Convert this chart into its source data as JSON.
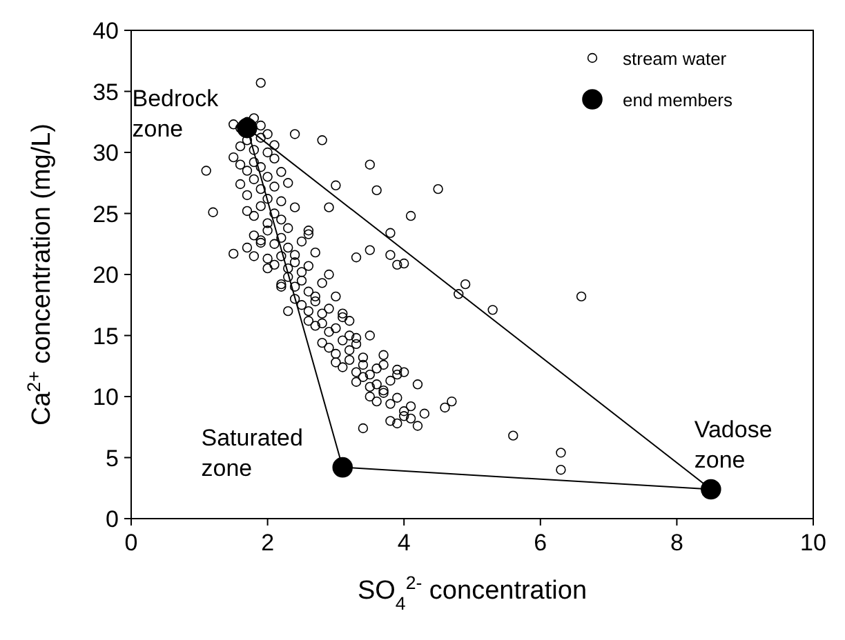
{
  "chart_data": {
    "type": "scatter",
    "xlabel": "SO$_{4}$$^{2-}$ concentration",
    "ylabel": "Ca$^{2+}$ concentration (mg/L)",
    "xlim": [
      0,
      10
    ],
    "ylim": [
      0,
      40
    ],
    "xticks": [
      0,
      2,
      4,
      6,
      8,
      10
    ],
    "yticks": [
      0,
      5,
      10,
      15,
      20,
      25,
      30,
      35,
      40
    ],
    "grid": false,
    "legend": "top right",
    "series": [
      {
        "name": "stream water",
        "marker": "circle",
        "color": "#000000",
        "x": [
          1.9,
          1.5,
          1.6,
          1.7,
          1.8,
          1.9,
          2.0,
          1.6,
          1.7,
          1.8,
          1.9,
          2.0,
          2.1,
          1.5,
          1.6,
          1.7,
          1.8,
          1.9,
          2.0,
          2.1,
          2.2,
          1.6,
          1.7,
          1.8,
          1.9,
          2.0,
          2.1,
          2.2,
          2.3,
          1.7,
          1.8,
          1.9,
          2.0,
          2.1,
          2.2,
          2.3,
          2.4,
          1.8,
          1.9,
          2.0,
          2.1,
          2.2,
          2.3,
          2.4,
          2.5,
          2.6,
          2.0,
          2.1,
          2.2,
          2.3,
          2.4,
          2.5,
          2.6,
          2.7,
          2.2,
          2.3,
          2.4,
          2.5,
          2.6,
          2.7,
          2.8,
          2.9,
          2.4,
          2.5,
          2.6,
          2.7,
          2.8,
          2.9,
          3.0,
          3.1,
          2.6,
          2.7,
          2.8,
          2.9,
          3.0,
          3.1,
          3.2,
          3.3,
          2.8,
          2.9,
          3.0,
          3.1,
          3.2,
          3.3,
          3.4,
          3.5,
          3.0,
          3.1,
          3.2,
          3.3,
          3.4,
          3.5,
          3.6,
          3.7,
          3.3,
          3.4,
          3.5,
          3.6,
          3.7,
          3.8,
          3.9,
          3.5,
          3.6,
          3.7,
          3.8,
          3.9,
          4.0,
          4.1,
          3.8,
          3.9,
          4.0,
          4.1,
          4.2,
          1.1,
          1.2,
          1.5,
          1.7,
          1.8,
          1.9,
          2.0,
          2.2,
          2.3,
          2.6,
          2.4,
          2.8,
          3.5,
          3.6,
          3.8,
          3.0,
          3.3,
          3.5,
          3.9,
          4.1,
          4.5,
          4.9,
          5.3,
          6.6,
          3.8,
          4.0,
          4.8,
          4.7,
          4.6,
          5.6,
          6.3,
          6.3,
          3.4,
          4.3,
          4.2,
          3.9,
          4.0,
          3.7,
          3.2,
          2.9
        ],
        "values": [
          35.7,
          32.3,
          32.0,
          32.5,
          32.8,
          32.2,
          31.5,
          30.5,
          31.0,
          30.2,
          31.2,
          30.0,
          30.6,
          29.6,
          29.0,
          28.5,
          29.2,
          28.8,
          28.0,
          29.5,
          28.4,
          27.4,
          26.5,
          27.8,
          27.0,
          26.2,
          27.2,
          26.0,
          27.5,
          25.2,
          24.8,
          25.6,
          24.2,
          25.0,
          24.5,
          23.8,
          25.5,
          23.2,
          22.8,
          23.6,
          22.5,
          23.0,
          22.2,
          21.6,
          22.7,
          23.3,
          21.3,
          20.8,
          21.5,
          20.5,
          21.0,
          20.2,
          20.7,
          21.8,
          19.2,
          19.8,
          19.0,
          19.5,
          18.6,
          18.2,
          19.3,
          20.0,
          18.0,
          17.5,
          17.0,
          17.8,
          16.8,
          17.2,
          18.2,
          16.5,
          16.2,
          15.8,
          16.0,
          15.3,
          15.6,
          16.8,
          15.0,
          14.8,
          14.4,
          14.0,
          13.5,
          14.6,
          13.8,
          14.3,
          13.2,
          15.0,
          12.8,
          12.4,
          13.0,
          12.0,
          12.6,
          11.8,
          12.3,
          13.4,
          11.2,
          11.6,
          10.8,
          11.0,
          10.5,
          11.3,
          12.2,
          10.0,
          9.6,
          10.3,
          9.4,
          9.9,
          8.8,
          9.2,
          8.0,
          7.8,
          8.4,
          8.2,
          7.6,
          28.5,
          25.1,
          21.7,
          22.2,
          21.5,
          22.6,
          20.5,
          19.0,
          17.0,
          23.6,
          31.5,
          31.0,
          29.0,
          26.9,
          23.4,
          27.3,
          21.4,
          22.0,
          20.8,
          24.8,
          27.0,
          19.2,
          17.1,
          18.2,
          21.6,
          20.9,
          18.4,
          9.6,
          9.1,
          6.8,
          5.4,
          4.0,
          7.4,
          8.6,
          11.0,
          11.8,
          12.0,
          12.6,
          16.2,
          25.5
        ]
      },
      {
        "name": "end members",
        "marker": "circle",
        "color": "#000000",
        "x": [
          1.7,
          3.1,
          8.5
        ],
        "values": [
          32.0,
          4.2,
          2.4
        ]
      },
      {
        "type": "line",
        "color": "#000000",
        "x": [
          1.7,
          8.5
        ],
        "values": [
          32.0,
          2.4
        ]
      },
      {
        "type": "line",
        "color": "#000000",
        "x": [
          3.1,
          8.5
        ],
        "values": [
          4.2,
          2.4
        ]
      },
      {
        "type": "line",
        "color": "#000000",
        "x": [
          1.7,
          3.1
        ],
        "values": [
          32.0,
          4.2
        ]
      }
    ],
    "annotations": [
      {
        "text": "Bedrock zone",
        "x": 1.7,
        "y": 32.0
      },
      {
        "text": "Saturated zone",
        "x": 3.1,
        "y": 4.2
      },
      {
        "text": "Vadose zone",
        "x": 8.5,
        "y": 2.4
      }
    ]
  }
}
